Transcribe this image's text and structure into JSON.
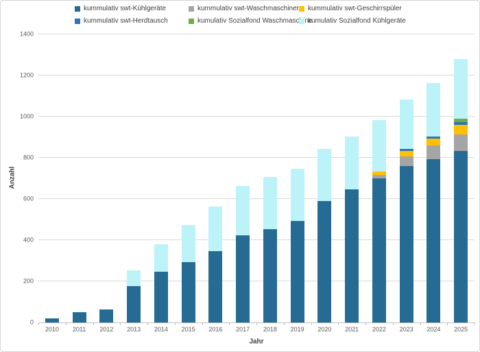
{
  "chart_data": {
    "type": "bar",
    "stacked": true,
    "title": "",
    "xlabel": "Jahr",
    "ylabel": "Anzahl",
    "ylim": [
      0,
      1400
    ],
    "yticks": [
      0,
      200,
      400,
      600,
      800,
      1000,
      1200,
      1400
    ],
    "grid": true,
    "legend_position": "top",
    "categories": [
      "2010",
      "2011",
      "2012",
      "2013",
      "2014",
      "2015",
      "2016",
      "2017",
      "2018",
      "2019",
      "2020",
      "2021",
      "2022",
      "2023",
      "2024",
      "2025"
    ],
    "series": [
      {
        "name": "kummulativ swt-Kühlgeräte",
        "key": "swt-kuehlgeraete",
        "color": "#256B93",
        "values": [
          20,
          50,
          65,
          178,
          248,
          295,
          348,
          422,
          455,
          495,
          590,
          648,
          700,
          760,
          795,
          832
        ]
      },
      {
        "name": "kummulativ swt-Waschmaschinen",
        "key": "swt-waschmaschinen",
        "color": "#A5A5A5",
        "values": [
          0,
          0,
          0,
          0,
          0,
          0,
          0,
          0,
          0,
          0,
          0,
          0,
          16,
          48,
          65,
          83
        ]
      },
      {
        "name": "kummulativ swt-Geschirrspüler",
        "key": "swt-geschirrspueler",
        "color": "#FFC000",
        "values": [
          0,
          0,
          0,
          0,
          0,
          0,
          0,
          0,
          0,
          0,
          0,
          0,
          17,
          27,
          33,
          45
        ]
      },
      {
        "name": "kummulativ swt-Herdtausch",
        "key": "swt-herdtausch",
        "color": "#2E75B6",
        "values": [
          0,
          0,
          0,
          0,
          0,
          0,
          0,
          0,
          0,
          0,
          0,
          0,
          0,
          8,
          10,
          12
        ]
      },
      {
        "name": "kumulativ Sozialfond Waschmaschine",
        "key": "sozialfond-waschmaschine",
        "color": "#70AD47",
        "values": [
          0,
          0,
          0,
          0,
          0,
          0,
          0,
          0,
          0,
          0,
          0,
          0,
          0,
          0,
          0,
          18
        ]
      },
      {
        "name": "kumulativ Sozialfond Kühlgeräte",
        "key": "sozialfond-kuehlgeraete",
        "color": "#BCF3F9",
        "values": [
          0,
          0,
          0,
          77,
          132,
          180,
          217,
          243,
          253,
          253,
          255,
          257,
          252,
          242,
          262,
          290
        ]
      }
    ],
    "colors": {
      "gridline": "#D9D9D9",
      "axis_line": "#BFBFBF",
      "tick_text": "#595959",
      "axis_title_text": "#404040"
    }
  }
}
